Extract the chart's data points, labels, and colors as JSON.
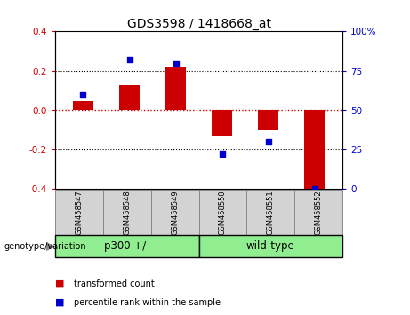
{
  "title": "GDS3598 / 1418668_at",
  "samples": [
    "GSM458547",
    "GSM458548",
    "GSM458549",
    "GSM458550",
    "GSM458551",
    "GSM458552"
  ],
  "red_bars": [
    0.05,
    0.13,
    0.22,
    -0.13,
    -0.1,
    -0.4
  ],
  "blue_dots_pct": [
    60,
    82,
    80,
    22,
    30,
    0
  ],
  "groups": [
    {
      "label": "p300 +/-",
      "start": 0,
      "end": 3,
      "color": "#90EE90"
    },
    {
      "label": "wild-type",
      "start": 3,
      "end": 6,
      "color": "#90EE90"
    }
  ],
  "ylim_left": [
    -0.4,
    0.4
  ],
  "ylim_right": [
    0,
    100
  ],
  "left_yticks": [
    -0.4,
    -0.2,
    0.0,
    0.2,
    0.4
  ],
  "right_yticks": [
    0,
    25,
    50,
    75,
    100
  ],
  "bar_color": "#CC0000",
  "dot_color": "#0000CC",
  "zero_line_color": "#CC0000",
  "grid_color": "black",
  "background_label": "#D3D3D3",
  "legend_bar_label": "transformed count",
  "legend_dot_label": "percentile rank within the sample",
  "genotype_label": "genotype/variation"
}
